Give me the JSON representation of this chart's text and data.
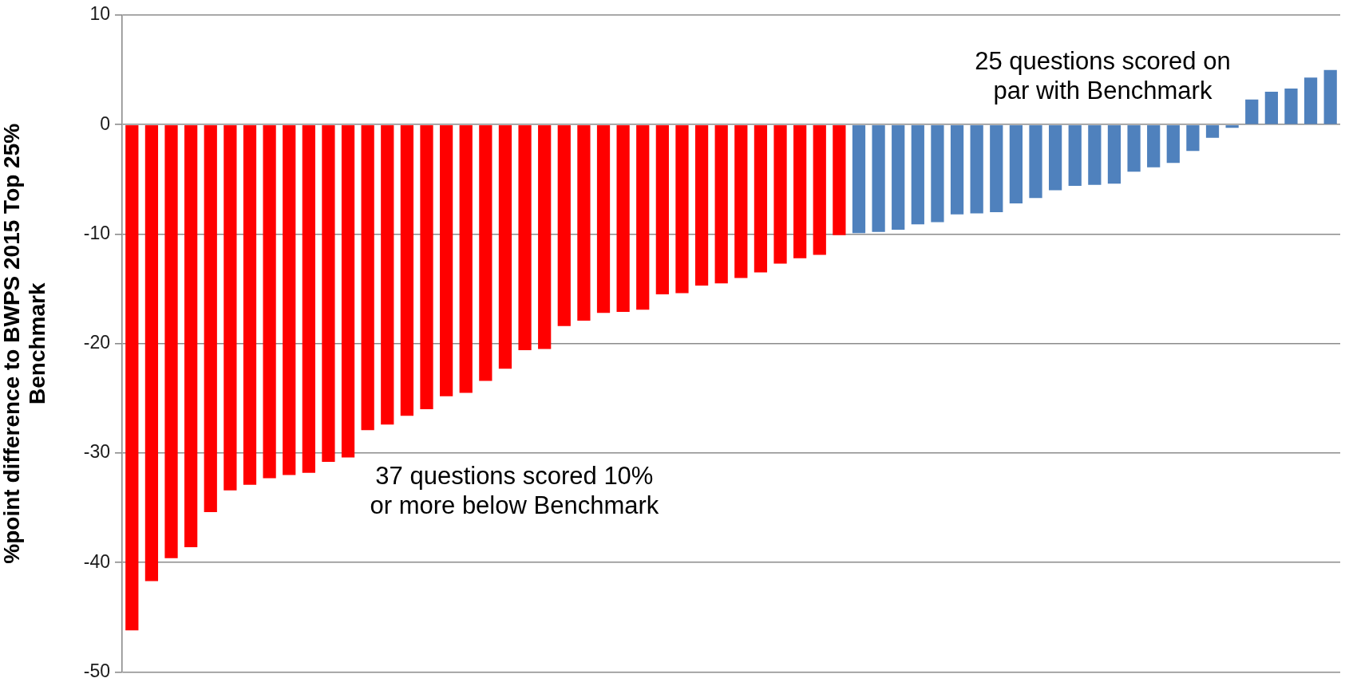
{
  "chart_data": {
    "type": "bar",
    "ylabel": "%point difference to BWPS 2015 Top 25% Benchmark",
    "categories": [
      null,
      null,
      null,
      null,
      null,
      null,
      null,
      null,
      null,
      null,
      null,
      null,
      null,
      null,
      null,
      null,
      null,
      null,
      null,
      null,
      null,
      null,
      null,
      null,
      null,
      null,
      null,
      null,
      null,
      null,
      null,
      null,
      null,
      null,
      null,
      null,
      null,
      null,
      null,
      null,
      null,
      null,
      null,
      null,
      null,
      null,
      null,
      null,
      null,
      null,
      null,
      null,
      null,
      null,
      null,
      null,
      null,
      null,
      null,
      null,
      null,
      null
    ],
    "values": [
      -46.2,
      -41.7,
      -39.6,
      -38.6,
      -35.4,
      -33.4,
      -32.9,
      -32.3,
      -32.0,
      -31.8,
      -30.8,
      -30.4,
      -27.9,
      -27.4,
      -26.6,
      -26.0,
      -24.8,
      -24.5,
      -23.4,
      -22.3,
      -20.6,
      -20.5,
      -18.4,
      -17.9,
      -17.2,
      -17.1,
      -16.9,
      -15.5,
      -15.4,
      -14.7,
      -14.5,
      -14.0,
      -13.5,
      -12.7,
      -12.2,
      -11.9,
      -10.1,
      -9.9,
      -9.8,
      -9.6,
      -9.1,
      -8.9,
      -8.2,
      -8.1,
      -8.0,
      -7.2,
      -6.7,
      -6.0,
      -5.6,
      -5.5,
      -5.4,
      -4.3,
      -3.9,
      -3.5,
      -2.4,
      -1.2,
      -0.3,
      2.3,
      3.0,
      3.3,
      4.3,
      5.0
    ],
    "colors": [
      "#ff0000",
      "#ff0000",
      "#ff0000",
      "#ff0000",
      "#ff0000",
      "#ff0000",
      "#ff0000",
      "#ff0000",
      "#ff0000",
      "#ff0000",
      "#ff0000",
      "#ff0000",
      "#ff0000",
      "#ff0000",
      "#ff0000",
      "#ff0000",
      "#ff0000",
      "#ff0000",
      "#ff0000",
      "#ff0000",
      "#ff0000",
      "#ff0000",
      "#ff0000",
      "#ff0000",
      "#ff0000",
      "#ff0000",
      "#ff0000",
      "#ff0000",
      "#ff0000",
      "#ff0000",
      "#ff0000",
      "#ff0000",
      "#ff0000",
      "#ff0000",
      "#ff0000",
      "#ff0000",
      "#ff0000",
      "#4f81bd",
      "#4f81bd",
      "#4f81bd",
      "#4f81bd",
      "#4f81bd",
      "#4f81bd",
      "#4f81bd",
      "#4f81bd",
      "#4f81bd",
      "#4f81bd",
      "#4f81bd",
      "#4f81bd",
      "#4f81bd",
      "#4f81bd",
      "#4f81bd",
      "#4f81bd",
      "#4f81bd",
      "#4f81bd",
      "#4f81bd",
      "#4f81bd",
      "#4f81bd",
      "#4f81bd",
      "#4f81bd",
      "#4f81bd",
      "#4f81bd"
    ],
    "ylim": [
      -50,
      10
    ],
    "yticks": [
      -50,
      -40,
      -30,
      -20,
      -10,
      0,
      10
    ],
    "grid": "y",
    "annotations": [
      "37 questions scored 10% or more below Benchmark",
      "25 questions scored on par with Benchmark"
    ]
  }
}
